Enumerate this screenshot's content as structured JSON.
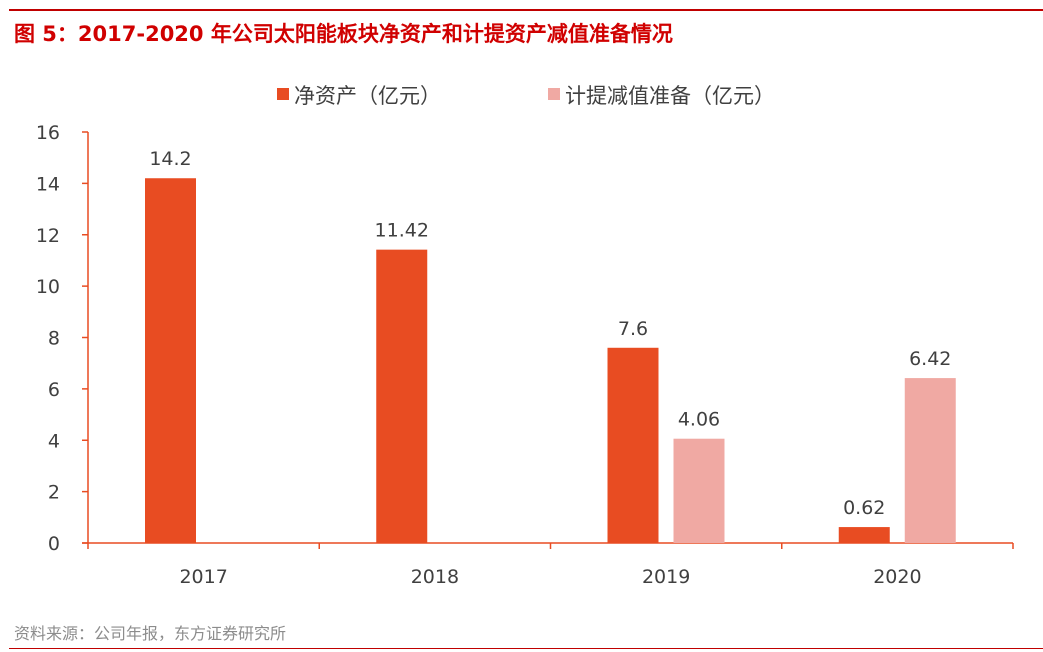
{
  "title": "图 5：2017-2020 年公司太阳能板块净资产和计提资产减值准备情况",
  "source": "资料来源：公司年报，东方证券研究所",
  "chart_data": {
    "type": "bar",
    "categories": [
      "2017",
      "2018",
      "2019",
      "2020"
    ],
    "series": [
      {
        "name": "净资产（亿元）",
        "color": "#e84c22",
        "values": [
          14.2,
          11.42,
          7.6,
          0.62
        ]
      },
      {
        "name": "计提减值准备（亿元）",
        "color": "#f0a9a3",
        "values": [
          null,
          null,
          4.06,
          6.42
        ]
      }
    ],
    "data_labels": [
      [
        "14.2",
        "11.42",
        "7.6",
        "0.62"
      ],
      [
        "",
        "",
        "4.06",
        "6.42"
      ]
    ],
    "ylim": [
      0,
      16
    ],
    "yticks": [
      "0",
      "2",
      "4",
      "6",
      "8",
      "10",
      "12",
      "14",
      "16"
    ],
    "grid": false,
    "legend": "top",
    "axis_color": "#e84c22"
  }
}
